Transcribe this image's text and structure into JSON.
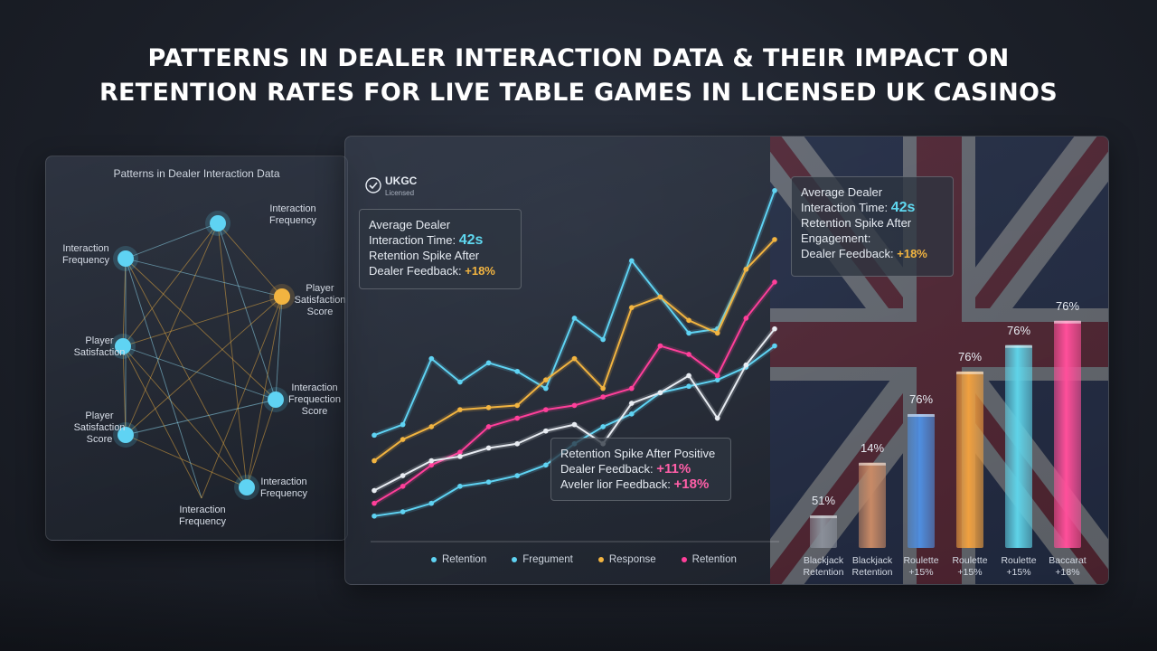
{
  "title": {
    "line1": "PATTERNS IN DEALER INTERACTION DATA & THEIR IMPACT ON",
    "line2": "RETENTION RATES FOR LIVE TABLE GAMES IN LICENSED UK CASINOS"
  },
  "network": {
    "title": "Patterns in Dealer Interaction Data",
    "nodes": [
      {
        "label": "Interaction\nFrequency",
        "color": "#5fd3f3"
      },
      {
        "label": "Interaction\nFrequency",
        "color": "#5fd3f3"
      },
      {
        "label": "Player\nSatisfaction\nScore",
        "color": "#f2b440"
      },
      {
        "label": "Player\nSatisfaction",
        "color": "#5fd3f3"
      },
      {
        "label": "Interaction\nFrequection\nScore",
        "color": "#5fd3f3"
      },
      {
        "label": "Player\nSatisfaction\nScore",
        "color": "#5fd3f3"
      },
      {
        "label": "Interaction\nFrequency",
        "color": "#5fd3f3"
      },
      {
        "label": "Interaction\nFrequency",
        "color": "#5fd3f3"
      }
    ]
  },
  "badge": {
    "name": "UKGC",
    "sub": "Licensed",
    "icon": "seal-icon"
  },
  "callouts": {
    "left": {
      "line1": "Average Dealer",
      "line2": "Interaction Time:",
      "value1": "42s",
      "line3": "Retention Spike After",
      "line4": "Dealer Feedback:",
      "value2": "+18%"
    },
    "right": {
      "line1": "Average Dealer",
      "line2": "Interaction Time:",
      "value1": "42s",
      "line3": "Retention Spike After",
      "line4": "Engagement:",
      "line5": "Dealer Feedback:",
      "value2": "+18%"
    },
    "middle": {
      "line1": "Retention Spike After Positive",
      "line2": "Dealer Feedback:",
      "value1": "+11%",
      "line3": "Aveler lior Feedback:",
      "value2": "+18%"
    }
  },
  "colors": {
    "cyan": "#5fd3f3",
    "gold": "#f2b440",
    "pink": "#ff3f9a",
    "white": "#e8ecf2"
  },
  "chart_data": [
    {
      "type": "line",
      "title": "",
      "xlabel": "",
      "ylabel": "",
      "grid": false,
      "legend": "bottom",
      "series": [
        {
          "name": "Retention",
          "color": "#5fd3f3",
          "values": [
            50,
            55,
            86,
            75,
            84,
            80,
            72,
            105,
            95,
            132,
            115,
            98,
            100,
            128,
            165
          ]
        },
        {
          "name": "Fregument",
          "color": "#5fd3f3",
          "values": [
            12,
            14,
            18,
            26,
            28,
            31,
            36,
            46,
            54,
            60,
            70,
            73,
            76,
            82,
            92
          ]
        },
        {
          "name": "Response",
          "color": "#f2b440",
          "values": [
            38,
            48,
            54,
            62,
            63,
            64,
            76,
            86,
            72,
            110,
            115,
            104,
            98,
            128,
            142
          ]
        },
        {
          "name": "Retention",
          "color": "#ff3f9a",
          "values": [
            18,
            26,
            36,
            42,
            54,
            58,
            62,
            64,
            68,
            72,
            92,
            88,
            78,
            105,
            122
          ]
        },
        {
          "name": "",
          "color": "#e8ecf2",
          "values": [
            24,
            31,
            38,
            40,
            44,
            46,
            52,
            55,
            46,
            65,
            70,
            78,
            58,
            83,
            100
          ]
        }
      ]
    },
    {
      "type": "bar",
      "title": "",
      "categories": [
        "Blackjack\nRetention",
        "Blackjack\nRetention",
        "Roulette\n+15%",
        "Roulette\n+15%",
        "Roulette\n+15%",
        "Baccarat\n+18%"
      ],
      "values": [
        51,
        14,
        76,
        76,
        76,
        76
      ],
      "value_labels": [
        "51%",
        "14%",
        "76%",
        "76%",
        "76%",
        "76%"
      ],
      "display_heights": [
        0.16,
        0.42,
        0.66,
        0.87,
        1.0,
        1.12
      ],
      "colors": [
        "#8a8f99",
        "#c88a66",
        "#4f8fe0",
        "#f0a040",
        "#5fd3e8",
        "#ff4f9a"
      ]
    }
  ]
}
